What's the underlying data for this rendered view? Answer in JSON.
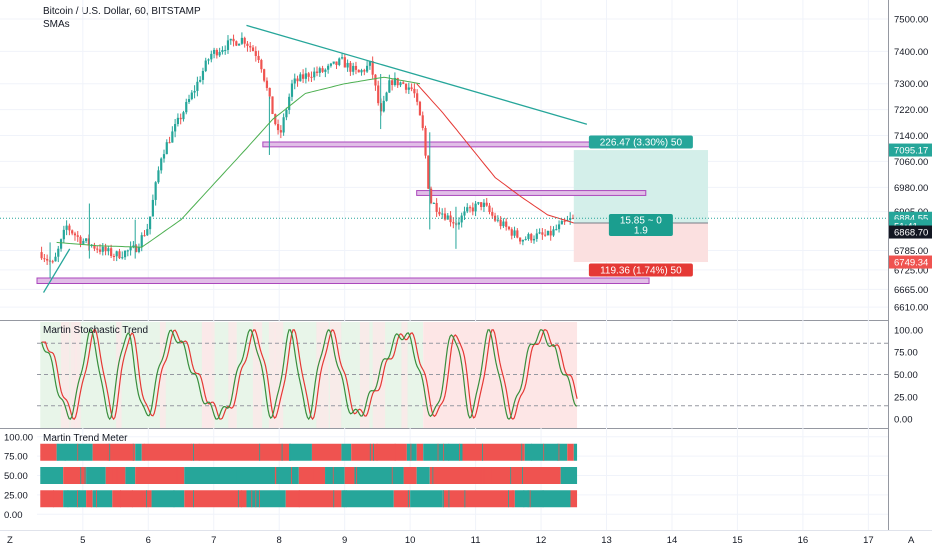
{
  "chart_data": {
    "type": "candlestick",
    "title": "Bitcoin / U.S. Dollar, 60, BITSTAMP",
    "overlay_label": "SMAs",
    "x_ticks": [
      "5",
      "6",
      "7",
      "8",
      "9",
      "10",
      "11",
      "12",
      "13",
      "14",
      "15",
      "16",
      "17"
    ],
    "x_range": [
      4.3,
      17.3
    ],
    "price_axis": {
      "ticks": [
        "7500.00",
        "7400.00",
        "7300.00",
        "7220.00",
        "7140.00",
        "7060.00",
        "6980.00",
        "6905.00",
        "6785.00",
        "6725.00",
        "6665.00",
        "6610.00"
      ],
      "range": [
        6595,
        7540
      ],
      "tags": [
        {
          "text": "7095.17",
          "value": 7095.17,
          "color": "#26a69a"
        },
        {
          "text": "6884.55",
          "value": 6884.55,
          "color": "#26a69a"
        },
        {
          "text": "51:41",
          "value": 6860,
          "color": "#26a69a"
        },
        {
          "text": "6868.70",
          "value": 6842,
          "color": "#131722"
        },
        {
          "text": "6749.34",
          "value": 6749.34,
          "color": "#ef5350"
        }
      ]
    },
    "price_anchors": [
      [
        4.35,
        6780
      ],
      [
        4.55,
        6740
      ],
      [
        4.75,
        6860
      ],
      [
        4.95,
        6820
      ],
      [
        5.25,
        6790
      ],
      [
        5.5,
        6770
      ],
      [
        5.8,
        6790
      ],
      [
        6.0,
        6860
      ],
      [
        6.2,
        7080
      ],
      [
        6.45,
        7180
      ],
      [
        6.7,
        7280
      ],
      [
        6.95,
        7390
      ],
      [
        7.2,
        7420
      ],
      [
        7.45,
        7440
      ],
      [
        7.7,
        7380
      ],
      [
        7.85,
        7250
      ],
      [
        8.0,
        7130
      ],
      [
        8.2,
        7300
      ],
      [
        8.45,
        7330
      ],
      [
        8.7,
        7340
      ],
      [
        8.95,
        7370
      ],
      [
        9.2,
        7330
      ],
      [
        9.4,
        7360
      ],
      [
        9.55,
        7200
      ],
      [
        9.7,
        7310
      ],
      [
        9.9,
        7300
      ],
      [
        10.05,
        7280
      ],
      [
        10.2,
        7150
      ],
      [
        10.3,
        6940
      ],
      [
        10.5,
        6900
      ],
      [
        10.7,
        6870
      ],
      [
        10.9,
        6910
      ],
      [
        11.1,
        6930
      ],
      [
        11.3,
        6880
      ],
      [
        11.5,
        6850
      ],
      [
        11.7,
        6820
      ],
      [
        11.9,
        6830
      ],
      [
        12.1,
        6830
      ],
      [
        12.3,
        6860
      ],
      [
        12.45,
        6880
      ]
    ],
    "sma_anchors": [
      [
        4.6,
        6810
      ],
      [
        5.2,
        6800
      ],
      [
        5.9,
        6795
      ],
      [
        6.5,
        6880
      ],
      [
        7.0,
        6990
      ],
      [
        7.5,
        7100
      ],
      [
        7.9,
        7190
      ],
      [
        8.4,
        7270
      ],
      [
        9.0,
        7300
      ],
      [
        9.6,
        7320
      ],
      [
        10.15,
        7300
      ]
    ],
    "sma_red_anchors": [
      [
        10.1,
        7300
      ],
      [
        10.5,
        7210
      ],
      [
        10.9,
        7110
      ],
      [
        11.3,
        7010
      ],
      [
        11.7,
        6950
      ],
      [
        12.1,
        6895
      ],
      [
        12.5,
        6870
      ]
    ],
    "trendline": {
      "from": [
        7.5,
        7480
      ],
      "to": [
        12.7,
        7175
      ],
      "color": "#26a69a"
    },
    "support_zones": [
      {
        "from": 7.75,
        "to": 12.75,
        "low": 7105,
        "high": 7120
      },
      {
        "from": 10.1,
        "to": 13.6,
        "low": 6955,
        "high": 6970
      },
      {
        "from": 4.3,
        "to": 13.65,
        "low": 6683,
        "high": 6700
      }
    ],
    "position": {
      "x_start": 12.5,
      "x_end": 14.55,
      "entry": 6870,
      "target": 7095.17,
      "stop": 6749.34,
      "target_label": "226.47 (3.30%) 50",
      "stop_label": "119.36 (1.74%) 50",
      "ratio_label": "15.85 ~ 0",
      "ratio_value": "1.9"
    },
    "stochastic": {
      "name": "Martin Stochastic Trend",
      "y_ticks": [
        "100.00",
        "75.00",
        "50.00",
        "25.00",
        "0.00"
      ],
      "ylim": [
        -10,
        110
      ],
      "levels": [
        85,
        50,
        15
      ]
    },
    "trend_meter": {
      "name": "Martin Trend Meter",
      "y_ticks": [
        "100.00",
        "75.00",
        "50.00",
        "25.00",
        "0.00"
      ],
      "ylim": [
        -10,
        110
      ],
      "bars": [
        {
          "center": 80,
          "segments": [
            [
              4.35,
              4.6,
              "r"
            ],
            [
              4.6,
              5.15,
              "g"
            ],
            [
              5.15,
              5.8,
              "r"
            ],
            [
              5.8,
              5.9,
              "g"
            ],
            [
              5.9,
              8.15,
              "r"
            ],
            [
              8.15,
              8.5,
              "g"
            ],
            [
              8.5,
              8.95,
              "r"
            ],
            [
              8.95,
              9.1,
              "g"
            ],
            [
              9.1,
              9.95,
              "r"
            ],
            [
              9.95,
              10.1,
              "g"
            ],
            [
              10.1,
              10.2,
              "r"
            ],
            [
              10.2,
              10.8,
              "g"
            ],
            [
              10.8,
              11.75,
              "r"
            ],
            [
              11.75,
              12.4,
              "g"
            ],
            [
              12.4,
              12.5,
              "r"
            ],
            [
              12.5,
              12.55,
              "g"
            ]
          ]
        },
        {
          "center": 50,
          "segments": [
            [
              4.35,
              4.7,
              "g"
            ],
            [
              4.7,
              5.05,
              "r"
            ],
            [
              5.05,
              5.35,
              "g"
            ],
            [
              5.35,
              5.65,
              "r"
            ],
            [
              5.65,
              5.8,
              "g"
            ],
            [
              5.8,
              6.55,
              "r"
            ],
            [
              6.55,
              8.3,
              "g"
            ],
            [
              8.3,
              8.7,
              "r"
            ],
            [
              8.7,
              9.0,
              "g"
            ],
            [
              9.0,
              9.15,
              "r"
            ],
            [
              9.15,
              9.9,
              "g"
            ],
            [
              9.9,
              10.1,
              "r"
            ],
            [
              10.1,
              10.3,
              "g"
            ],
            [
              10.3,
              12.3,
              "r"
            ],
            [
              12.3,
              12.55,
              "g"
            ]
          ]
        },
        {
          "center": 20,
          "segments": [
            [
              4.35,
              4.7,
              "r"
            ],
            [
              4.7,
              5.05,
              "g"
            ],
            [
              5.05,
              5.15,
              "r"
            ],
            [
              5.15,
              5.45,
              "g"
            ],
            [
              5.45,
              6.05,
              "r"
            ],
            [
              6.05,
              6.55,
              "g"
            ],
            [
              6.55,
              7.5,
              "r"
            ],
            [
              7.5,
              8.1,
              "g"
            ],
            [
              8.1,
              8.95,
              "r"
            ],
            [
              8.95,
              9.75,
              "g"
            ],
            [
              9.75,
              10.0,
              "r"
            ],
            [
              10.0,
              10.5,
              "g"
            ],
            [
              10.5,
              11.6,
              "r"
            ],
            [
              11.6,
              12.45,
              "g"
            ],
            [
              12.45,
              12.55,
              "r"
            ]
          ]
        }
      ]
    },
    "colors": {
      "up": "#26a69a",
      "down": "#ef5350",
      "sma_green": "#4caf50",
      "sma_red": "#e53935",
      "zone_fill": "#e1bee7",
      "zone_stroke": "#ab47bc",
      "profit_fill": "#d4efea",
      "loss_fill": "#fbe0e0",
      "stoch_green_bg": "#e8f5e9",
      "stoch_red_bg": "#fde6e6"
    }
  },
  "ui": {
    "bottom_left_icon": "Z",
    "bottom_right_icon": "A"
  }
}
